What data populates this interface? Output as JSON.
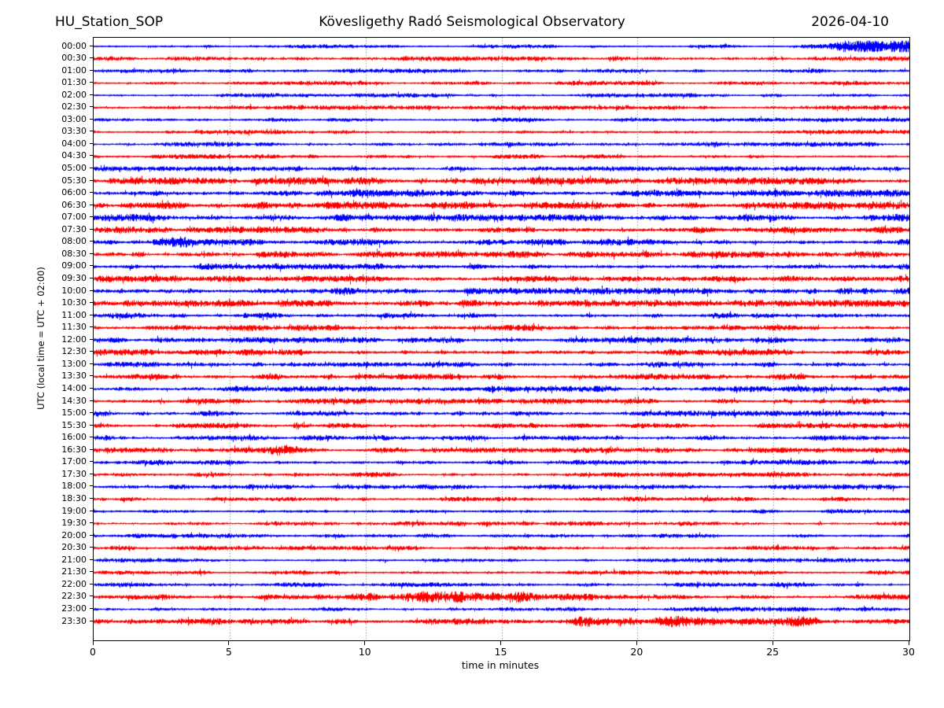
{
  "header": {
    "station": "HU_Station_SOP",
    "observatory": "Kövesligethy Radó Seismological Observatory",
    "date": "2026-04-10"
  },
  "chart_data": {
    "type": "line",
    "subtype": "helicorder-seismogram",
    "title_left": "HU_Station_SOP",
    "title_center": "Kövesligethy Radó Seismological Observatory",
    "title_right": "2026-04-10",
    "xlabel": "time in minutes",
    "ylabel": "UTC (local time = UTC + 02:00)",
    "xlim": [
      0,
      30
    ],
    "x_ticks": [
      0,
      5,
      10,
      15,
      20,
      25,
      30
    ],
    "grid_minutes": [
      5,
      10,
      15,
      20,
      25
    ],
    "grid_style": "dotted",
    "minutes_per_row": 30,
    "trace_colors": {
      "even_rows": "#0000ff",
      "odd_rows": "#ff0000"
    },
    "rows": [
      {
        "label": "00:00",
        "color": "#0000ff",
        "base_amp": 1.4,
        "events": [
          {
            "t": 28.8,
            "sigma": 1.4,
            "amp": 3.0
          },
          {
            "t": 30.0,
            "sigma": 0.7,
            "amp": 1.6
          }
        ]
      },
      {
        "label": "00:30",
        "color": "#ff0000",
        "base_amp": 1.6,
        "events": []
      },
      {
        "label": "01:00",
        "color": "#0000ff",
        "base_amp": 1.4,
        "events": [
          {
            "t": 2.8,
            "sigma": 0.45,
            "amp": 2.2
          }
        ]
      },
      {
        "label": "01:30",
        "color": "#ff0000",
        "base_amp": 1.5,
        "events": []
      },
      {
        "label": "02:00",
        "color": "#0000ff",
        "base_amp": 1.4,
        "events": []
      },
      {
        "label": "02:30",
        "color": "#ff0000",
        "base_amp": 1.5,
        "events": []
      },
      {
        "label": "03:00",
        "color": "#0000ff",
        "base_amp": 1.4,
        "events": []
      },
      {
        "label": "03:30",
        "color": "#ff0000",
        "base_amp": 1.5,
        "events": []
      },
      {
        "label": "04:00",
        "color": "#0000ff",
        "base_amp": 1.6,
        "events": []
      },
      {
        "label": "04:30",
        "color": "#ff0000",
        "base_amp": 1.6,
        "events": []
      },
      {
        "label": "05:00",
        "color": "#0000ff",
        "base_amp": 1.7,
        "events": []
      },
      {
        "label": "05:30",
        "color": "#ff0000",
        "base_amp": 2.4,
        "events": []
      },
      {
        "label": "06:00",
        "color": "#0000ff",
        "base_amp": 2.4,
        "events": []
      },
      {
        "label": "06:30",
        "color": "#ff0000",
        "base_amp": 2.6,
        "events": []
      },
      {
        "label": "07:00",
        "color": "#0000ff",
        "base_amp": 2.4,
        "events": []
      },
      {
        "label": "07:30",
        "color": "#ff0000",
        "base_amp": 2.3,
        "events": []
      },
      {
        "label": "08:00",
        "color": "#0000ff",
        "base_amp": 2.2,
        "events": [
          {
            "t": 2.9,
            "sigma": 0.5,
            "amp": 2.4
          }
        ]
      },
      {
        "label": "08:30",
        "color": "#ff0000",
        "base_amp": 2.2,
        "events": []
      },
      {
        "label": "09:00",
        "color": "#0000ff",
        "base_amp": 2.1,
        "events": []
      },
      {
        "label": "09:30",
        "color": "#ff0000",
        "base_amp": 2.1,
        "events": []
      },
      {
        "label": "10:00",
        "color": "#0000ff",
        "base_amp": 2.3,
        "events": []
      },
      {
        "label": "10:30",
        "color": "#ff0000",
        "base_amp": 2.3,
        "events": []
      },
      {
        "label": "11:00",
        "color": "#0000ff",
        "base_amp": 2.0,
        "events": []
      },
      {
        "label": "11:30",
        "color": "#ff0000",
        "base_amp": 2.0,
        "events": []
      },
      {
        "label": "12:00",
        "color": "#0000ff",
        "base_amp": 2.0,
        "events": []
      },
      {
        "label": "12:30",
        "color": "#ff0000",
        "base_amp": 2.1,
        "events": []
      },
      {
        "label": "13:00",
        "color": "#0000ff",
        "base_amp": 2.0,
        "events": []
      },
      {
        "label": "13:30",
        "color": "#ff0000",
        "base_amp": 2.0,
        "events": [
          {
            "t": 12.9,
            "sigma": 0.5,
            "amp": 2.6
          }
        ]
      },
      {
        "label": "14:00",
        "color": "#0000ff",
        "base_amp": 2.0,
        "events": []
      },
      {
        "label": "14:30",
        "color": "#ff0000",
        "base_amp": 1.9,
        "events": [
          {
            "t": 5.3,
            "sigma": 0.18,
            "amp": 3.2
          }
        ]
      },
      {
        "label": "15:00",
        "color": "#0000ff",
        "base_amp": 1.9,
        "events": []
      },
      {
        "label": "15:30",
        "color": "#ff0000",
        "base_amp": 1.8,
        "events": [
          {
            "t": 7.5,
            "sigma": 0.18,
            "amp": 2.8
          }
        ]
      },
      {
        "label": "16:00",
        "color": "#0000ff",
        "base_amp": 1.8,
        "events": []
      },
      {
        "label": "16:30",
        "color": "#ff0000",
        "base_amp": 1.8,
        "events": [
          {
            "t": 6.8,
            "sigma": 0.5,
            "amp": 2.2
          }
        ]
      },
      {
        "label": "17:00",
        "color": "#0000ff",
        "base_amp": 1.7,
        "events": []
      },
      {
        "label": "17:30",
        "color": "#ff0000",
        "base_amp": 1.7,
        "events": []
      },
      {
        "label": "18:00",
        "color": "#0000ff",
        "base_amp": 1.7,
        "events": []
      },
      {
        "label": "18:30",
        "color": "#ff0000",
        "base_amp": 1.6,
        "events": []
      },
      {
        "label": "19:00",
        "color": "#0000ff",
        "base_amp": 1.5,
        "events": []
      },
      {
        "label": "19:30",
        "color": "#ff0000",
        "base_amp": 1.5,
        "events": []
      },
      {
        "label": "20:00",
        "color": "#0000ff",
        "base_amp": 1.5,
        "events": []
      },
      {
        "label": "20:30",
        "color": "#ff0000",
        "base_amp": 1.5,
        "events": []
      },
      {
        "label": "21:00",
        "color": "#0000ff",
        "base_amp": 1.4,
        "events": []
      },
      {
        "label": "21:30",
        "color": "#ff0000",
        "base_amp": 1.5,
        "events": []
      },
      {
        "label": "22:00",
        "color": "#0000ff",
        "base_amp": 1.6,
        "events": []
      },
      {
        "label": "22:30",
        "color": "#ff0000",
        "base_amp": 1.8,
        "events": [
          {
            "t": 13.2,
            "sigma": 1.5,
            "amp": 3.0
          },
          {
            "t": 11.0,
            "sigma": 0.8,
            "amp": 1.6
          },
          {
            "t": 16.5,
            "sigma": 1.2,
            "amp": 1.2
          }
        ]
      },
      {
        "label": "23:00",
        "color": "#0000ff",
        "base_amp": 1.6,
        "events": []
      },
      {
        "label": "23:30",
        "color": "#ff0000",
        "base_amp": 2.2,
        "events": [
          {
            "t": 17.8,
            "sigma": 0.5,
            "amp": 2.0
          },
          {
            "t": 21.0,
            "sigma": 0.9,
            "amp": 2.0
          },
          {
            "t": 26.0,
            "sigma": 0.6,
            "amp": 1.4
          }
        ]
      }
    ]
  }
}
